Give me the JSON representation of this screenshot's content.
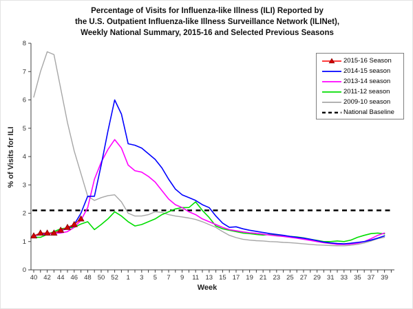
{
  "chart": {
    "title_lines": [
      "Percentage of Visits for Influenza-like Illness (ILI) Reported by",
      "the U.S. Outpatient Influenza-like Illness Surveillance Network (ILINet),",
      "Weekly National Summary, 2015-16 and Selected Previous Seasons"
    ],
    "x_axis_label": "Week",
    "y_axis_label": "% of Visits for ILI"
  },
  "chart_data": {
    "type": "line",
    "title": "Percentage of Visits for Influenza-like Illness (ILI) Reported by the U.S. Outpatient Influenza-like Illness Surveillance Network (ILINet), Weekly National Summary, 2015-16 and Selected Previous Seasons",
    "xlabel": "Week",
    "ylabel": "% of Visits for ILI",
    "ylim": [
      0,
      8
    ],
    "y_ticks": [
      0,
      1,
      2,
      3,
      4,
      5,
      6,
      7,
      8
    ],
    "grid": false,
    "legend_position": "top-right",
    "x_categories": [
      "40",
      "41",
      "42",
      "43",
      "44",
      "45",
      "46",
      "47",
      "48",
      "49",
      "50",
      "51",
      "52",
      "53",
      "1",
      "2",
      "3",
      "4",
      "5",
      "6",
      "7",
      "8",
      "9",
      "10",
      "11",
      "12",
      "13",
      "14",
      "15",
      "16",
      "17",
      "18",
      "19",
      "20",
      "21",
      "22",
      "23",
      "24",
      "25",
      "26",
      "27",
      "28",
      "29",
      "30",
      "31",
      "32",
      "33",
      "34",
      "35",
      "36",
      "37",
      "38",
      "39"
    ],
    "x_label_every": 2,
    "baseline": {
      "label": "National Baseline",
      "value": 2.1,
      "color": "#000000",
      "style": "dashed"
    },
    "series": [
      {
        "name": "2015-16 Season",
        "color": "#ff2020",
        "marker": "triangle",
        "marker_color": "#d40000",
        "values": [
          1.2,
          1.3,
          1.3,
          1.3,
          1.4,
          1.5,
          1.6,
          1.8,
          null,
          null,
          null,
          null,
          null,
          null,
          null,
          null,
          null,
          null,
          null,
          null,
          null,
          null,
          null,
          null,
          null,
          null,
          null,
          null,
          null,
          null,
          null,
          null,
          null,
          null,
          null,
          null,
          null,
          null,
          null,
          null,
          null,
          null,
          null,
          null,
          null,
          null,
          null,
          null,
          null,
          null,
          null,
          null,
          null
        ]
      },
      {
        "name": "2014-15 season",
        "color": "#0000ff",
        "values": [
          1.2,
          1.25,
          1.3,
          1.3,
          1.4,
          1.45,
          1.6,
          2.0,
          2.6,
          2.6,
          3.7,
          4.9,
          6.0,
          5.5,
          4.45,
          4.4,
          4.3,
          4.1,
          3.9,
          3.6,
          3.2,
          2.85,
          2.65,
          2.55,
          2.45,
          2.3,
          2.2,
          1.9,
          1.65,
          1.5,
          1.52,
          1.45,
          1.4,
          1.36,
          1.32,
          1.28,
          1.25,
          1.22,
          1.18,
          1.15,
          1.12,
          1.08,
          1.03,
          0.98,
          0.95,
          0.93,
          0.92,
          0.94,
          0.97,
          1.0,
          1.05,
          1.12,
          1.2
        ]
      },
      {
        "name": "2013-14 season",
        "color": "#ff00ff",
        "values": [
          1.2,
          1.25,
          1.25,
          1.3,
          1.3,
          1.35,
          1.5,
          1.75,
          2.2,
          3.2,
          3.8,
          4.25,
          4.6,
          4.3,
          3.7,
          3.5,
          3.45,
          3.3,
          3.1,
          2.8,
          2.5,
          2.3,
          2.2,
          2.05,
          1.95,
          1.8,
          1.7,
          1.6,
          1.5,
          1.42,
          1.38,
          1.34,
          1.31,
          1.29,
          1.26,
          1.23,
          1.2,
          1.18,
          1.15,
          1.12,
          1.08,
          1.04,
          1.0,
          0.96,
          0.93,
          0.9,
          0.9,
          0.91,
          0.94,
          1.0,
          1.1,
          1.22,
          1.3
        ]
      },
      {
        "name": "2011-12 season",
        "color": "#00dd00",
        "values": [
          1.15,
          1.15,
          1.25,
          1.35,
          1.45,
          1.48,
          1.5,
          1.62,
          1.7,
          1.42,
          1.6,
          1.8,
          2.05,
          1.9,
          1.7,
          1.55,
          1.6,
          1.7,
          1.8,
          1.95,
          2.05,
          2.15,
          2.2,
          2.2,
          2.4,
          2.1,
          1.85,
          1.55,
          1.45,
          1.4,
          1.35,
          1.3,
          1.28,
          1.25,
          1.23,
          1.25,
          1.22,
          1.2,
          1.18,
          1.16,
          1.13,
          1.08,
          1.04,
          1.0,
          1.0,
          1.02,
          1.0,
          1.05,
          1.15,
          1.22,
          1.28,
          1.3,
          1.27
        ]
      },
      {
        "name": "2009-10 season",
        "color": "#a6a6a6",
        "values": [
          6.1,
          7.0,
          7.7,
          7.6,
          6.4,
          5.2,
          4.2,
          3.4,
          2.6,
          2.45,
          2.55,
          2.62,
          2.65,
          2.4,
          2.0,
          1.9,
          1.9,
          1.95,
          2.05,
          2.03,
          1.95,
          1.9,
          1.87,
          1.83,
          1.78,
          1.7,
          1.6,
          1.5,
          1.35,
          1.22,
          1.14,
          1.08,
          1.05,
          1.03,
          1.02,
          1.0,
          0.99,
          0.97,
          0.96,
          0.94,
          0.92,
          0.9,
          0.88,
          0.87,
          0.86,
          0.85,
          0.85,
          0.87,
          0.9,
          0.95,
          1.02,
          1.1,
          1.15
        ]
      }
    ]
  }
}
